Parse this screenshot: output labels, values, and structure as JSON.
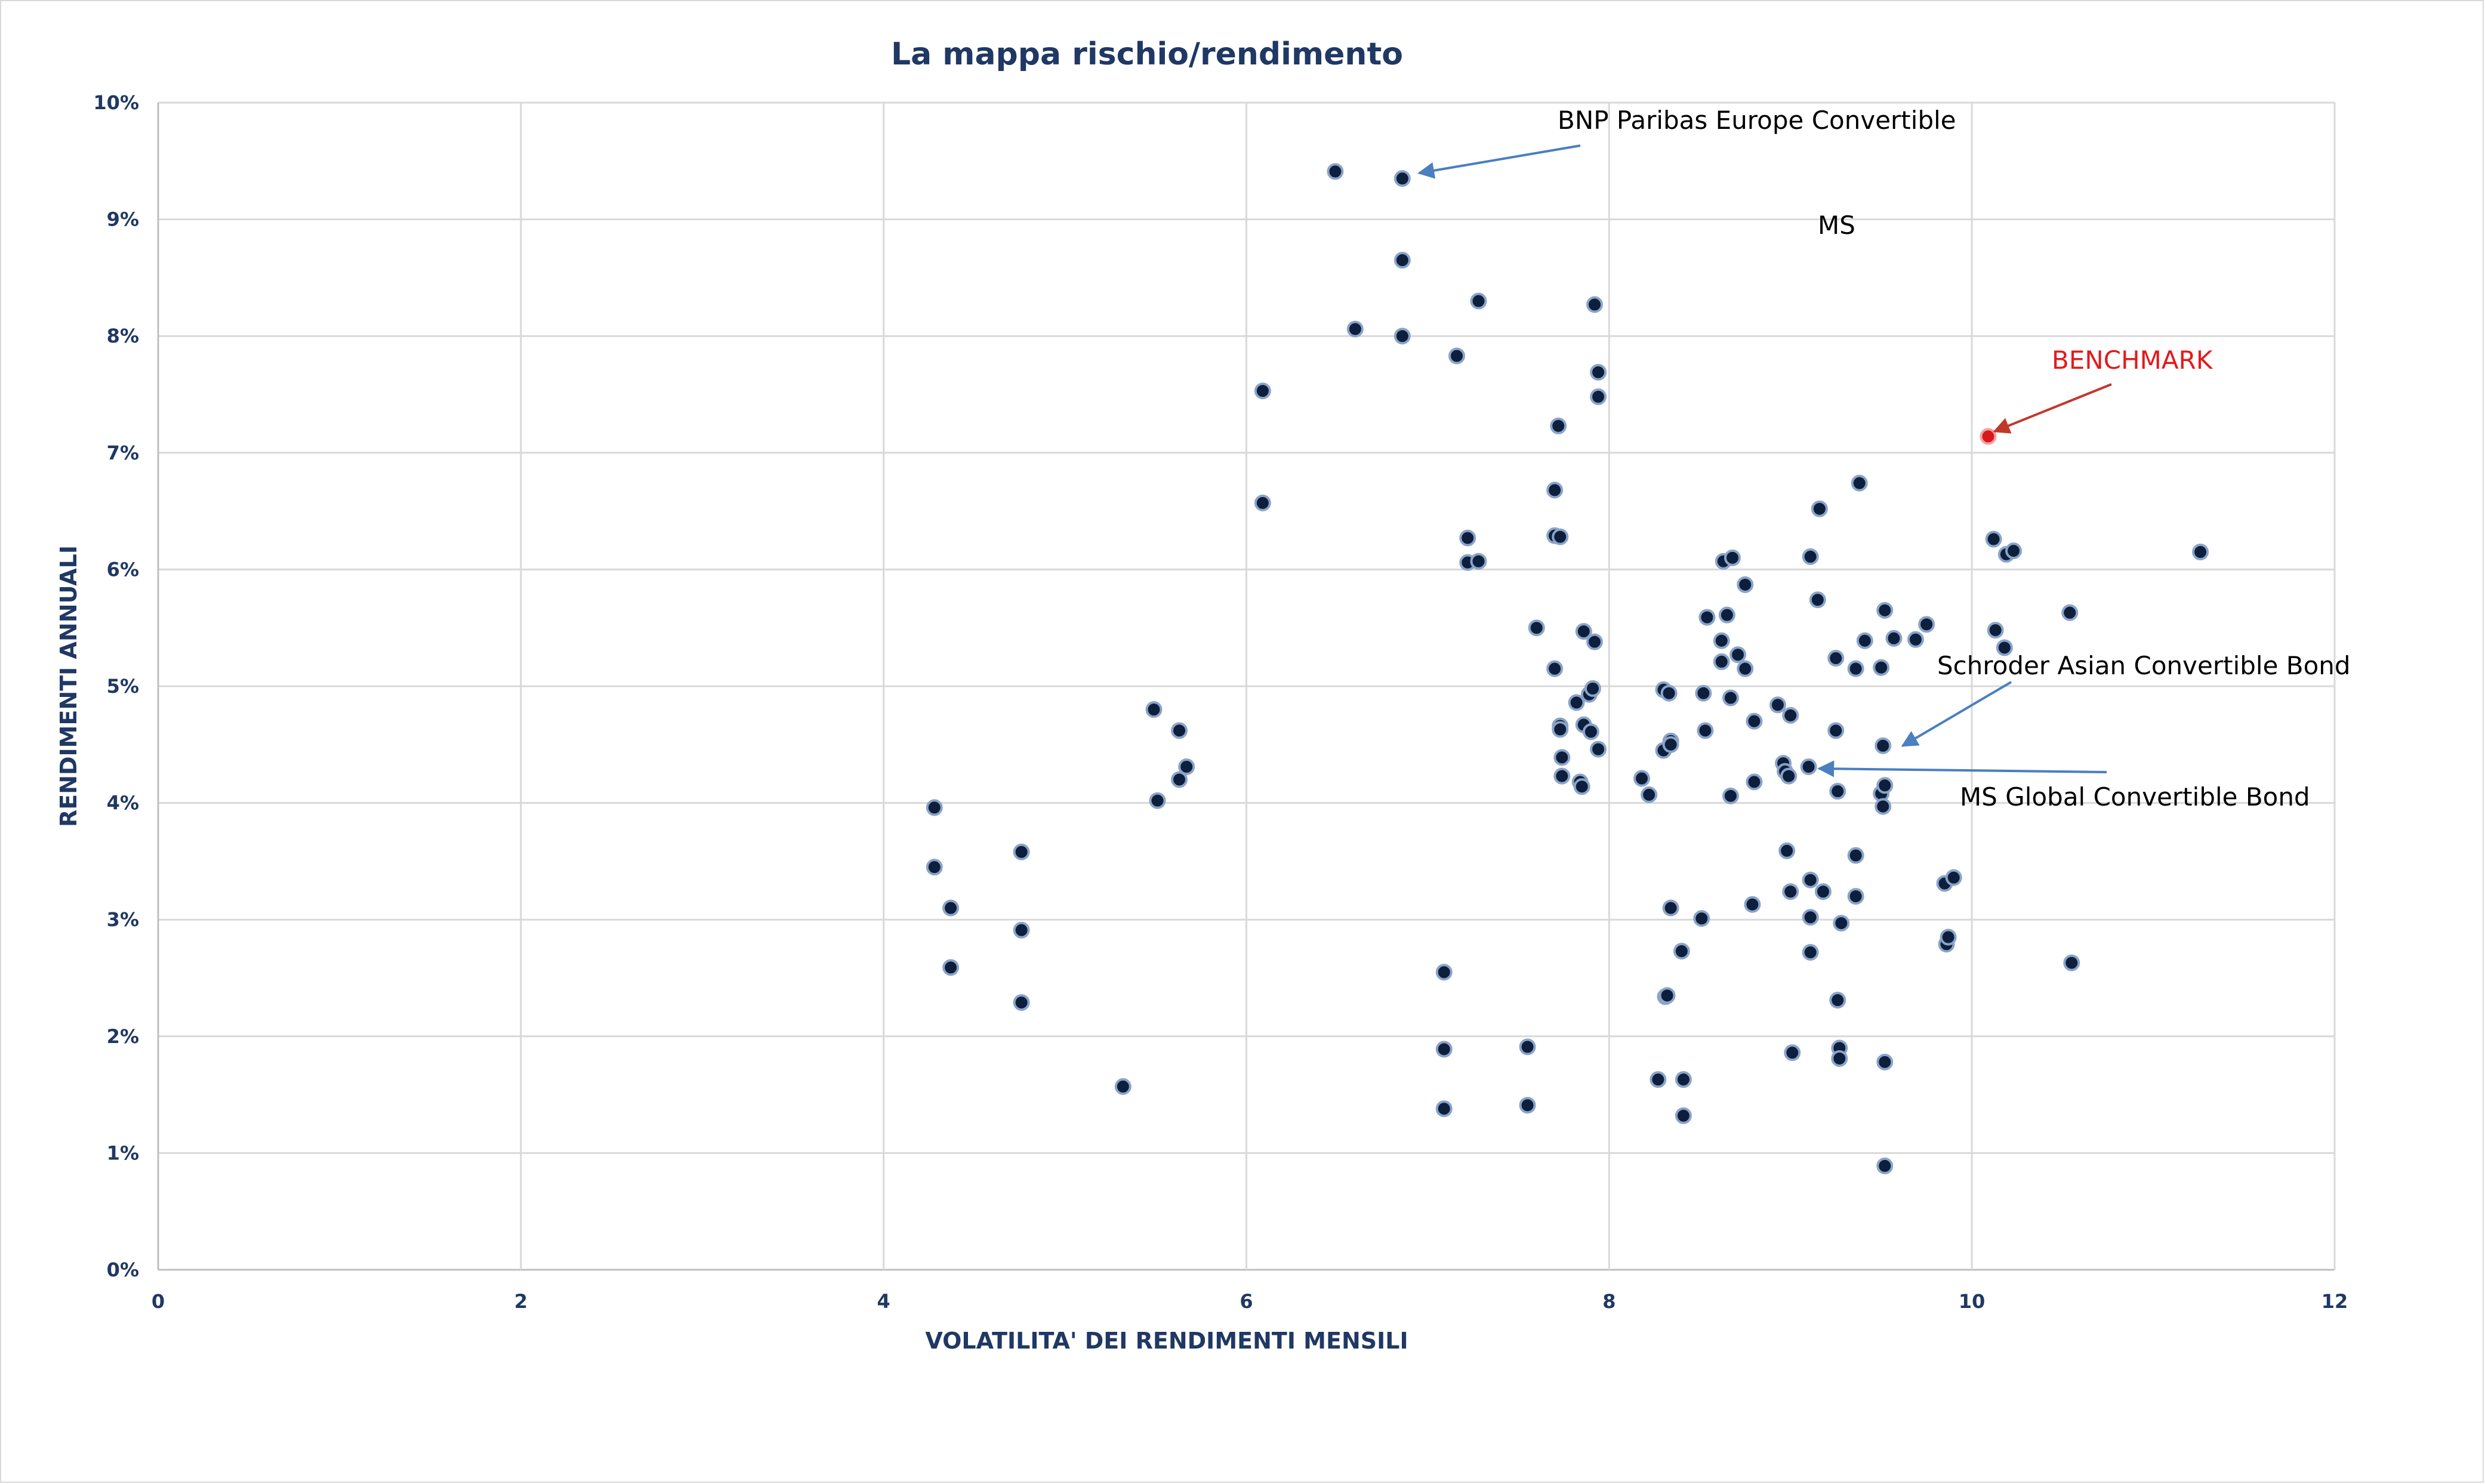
{
  "chart_data": {
    "type": "scatter",
    "title": "La mappa rischio/rendimento",
    "xlabel": "VOLATILITA' DEI RENDIMENTI MENSILI",
    "ylabel": "RENDIMENTI ANNUALI",
    "xlim": [
      0,
      12
    ],
    "ylim": [
      0,
      0.1
    ],
    "x_ticks": [
      "0",
      "2",
      "4",
      "6",
      "8",
      "10",
      "12"
    ],
    "y_ticks": [
      "0%",
      "1%",
      "2%",
      "3%",
      "4%",
      "5%",
      "6%",
      "7%",
      "8%",
      "9%",
      "10%"
    ],
    "grid": true,
    "colors": {
      "points": "#0d1f3c",
      "benchmark": "#d7191c",
      "arrow": "#4a7fc0",
      "text": "#1f3864"
    },
    "series": [
      {
        "points": [
          [
            4.28,
            0.0396
          ],
          [
            4.28,
            0.0345
          ],
          [
            4.37,
            0.031
          ],
          [
            4.37,
            0.0259
          ],
          [
            4.76,
            0.0358
          ],
          [
            4.76,
            0.0291
          ],
          [
            4.76,
            0.0229
          ],
          [
            5.32,
            0.0157
          ],
          [
            5.49,
            0.048
          ],
          [
            5.51,
            0.0402
          ],
          [
            5.63,
            0.0462
          ],
          [
            5.63,
            0.042
          ],
          [
            5.67,
            0.0431
          ],
          [
            6.09,
            0.0753
          ],
          [
            6.09,
            0.0657
          ],
          [
            6.49,
            0.0941
          ],
          [
            6.6,
            0.0806
          ],
          [
            6.86,
            0.0935
          ],
          [
            6.86,
            0.0865
          ],
          [
            6.86,
            0.08
          ],
          [
            7.09,
            0.0255
          ],
          [
            7.09,
            0.0189
          ],
          [
            7.09,
            0.0138
          ],
          [
            7.16,
            0.0783
          ],
          [
            7.22,
            0.0627
          ],
          [
            7.22,
            0.0606
          ],
          [
            7.28,
            0.083
          ],
          [
            7.28,
            0.0607
          ],
          [
            7.55,
            0.0191
          ],
          [
            7.55,
            0.0141
          ],
          [
            7.6,
            0.055
          ],
          [
            7.7,
            0.0668
          ],
          [
            7.7,
            0.0629
          ],
          [
            7.7,
            0.0515
          ],
          [
            7.72,
            0.0723
          ],
          [
            7.73,
            0.0628
          ],
          [
            7.73,
            0.0466
          ],
          [
            7.73,
            0.0463
          ],
          [
            7.74,
            0.0439
          ],
          [
            7.74,
            0.0423
          ],
          [
            7.82,
            0.0486
          ],
          [
            7.84,
            0.0418
          ],
          [
            7.85,
            0.0414
          ],
          [
            7.86,
            0.0547
          ],
          [
            7.86,
            0.0467
          ],
          [
            7.89,
            0.0493
          ],
          [
            7.9,
            0.0461
          ],
          [
            7.91,
            0.0498
          ],
          [
            7.92,
            0.0538
          ],
          [
            7.92,
            0.0827
          ],
          [
            7.94,
            0.0769
          ],
          [
            7.94,
            0.0748
          ],
          [
            7.94,
            0.0446
          ],
          [
            8.18,
            0.0421
          ],
          [
            8.22,
            0.0407
          ],
          [
            8.27,
            0.0163
          ],
          [
            8.3,
            0.0497
          ],
          [
            8.3,
            0.0445
          ],
          [
            8.31,
            0.0234
          ],
          [
            8.32,
            0.0235
          ],
          [
            8.33,
            0.0494
          ],
          [
            8.34,
            0.0453
          ],
          [
            8.34,
            0.045
          ],
          [
            8.34,
            0.031
          ],
          [
            8.4,
            0.0273
          ],
          [
            8.41,
            0.0163
          ],
          [
            8.41,
            0.0132
          ],
          [
            8.51,
            0.0301
          ],
          [
            8.52,
            0.0494
          ],
          [
            8.53,
            0.0462
          ],
          [
            8.54,
            0.0559
          ],
          [
            8.62,
            0.0539
          ],
          [
            8.62,
            0.0521
          ],
          [
            8.63,
            0.0607
          ],
          [
            8.65,
            0.0561
          ],
          [
            8.67,
            0.049
          ],
          [
            8.67,
            0.0406
          ],
          [
            8.68,
            0.061
          ],
          [
            8.71,
            0.0527
          ],
          [
            8.75,
            0.0587
          ],
          [
            8.75,
            0.0515
          ],
          [
            8.79,
            0.0313
          ],
          [
            8.8,
            0.047
          ],
          [
            8.8,
            0.0418
          ],
          [
            8.93,
            0.0484
          ],
          [
            8.96,
            0.0434
          ],
          [
            8.97,
            0.0427
          ],
          [
            8.98,
            0.0359
          ],
          [
            8.99,
            0.0423
          ],
          [
            9.0,
            0.0475
          ],
          [
            9.0,
            0.0324
          ],
          [
            9.01,
            0.0186
          ],
          [
            9.1,
            0.0431
          ],
          [
            9.11,
            0.0611
          ],
          [
            9.11,
            0.0334
          ],
          [
            9.11,
            0.0302
          ],
          [
            9.11,
            0.0272
          ],
          [
            9.15,
            0.0574
          ],
          [
            9.16,
            0.0652
          ],
          [
            9.18,
            0.0324
          ],
          [
            9.25,
            0.0524
          ],
          [
            9.25,
            0.0462
          ],
          [
            9.26,
            0.041
          ],
          [
            9.26,
            0.0231
          ],
          [
            9.27,
            0.019
          ],
          [
            9.27,
            0.0181
          ],
          [
            9.28,
            0.0297
          ],
          [
            9.36,
            0.0515
          ],
          [
            9.36,
            0.032
          ],
          [
            9.36,
            0.0355
          ],
          [
            9.38,
            0.0674
          ],
          [
            9.41,
            0.0539
          ],
          [
            9.5,
            0.0516
          ],
          [
            9.5,
            0.0408
          ],
          [
            9.51,
            0.0397
          ],
          [
            9.51,
            0.0449
          ],
          [
            9.52,
            0.0415
          ],
          [
            9.52,
            0.0565
          ],
          [
            9.52,
            0.0178
          ],
          [
            9.52,
            0.0089
          ],
          [
            9.57,
            0.0541
          ],
          [
            9.69,
            0.054
          ],
          [
            9.75,
            0.0553
          ],
          [
            9.85,
            0.0331
          ],
          [
            9.86,
            0.0279
          ],
          [
            9.87,
            0.0285
          ],
          [
            9.9,
            0.0336
          ],
          [
            10.12,
            0.0626
          ],
          [
            10.13,
            0.0548
          ],
          [
            10.18,
            0.0533
          ],
          [
            10.19,
            0.0613
          ],
          [
            10.23,
            0.0616
          ],
          [
            10.54,
            0.0563
          ],
          [
            10.55,
            0.0263
          ],
          [
            11.26,
            0.0615
          ]
        ]
      },
      {
        "points": [
          [
            10.09,
            0.0714
          ]
        ]
      }
    ],
    "annotations": [
      {
        "text": "BNP Paribas Europe Convertible",
        "target": [
          6.86,
          0.0935
        ]
      },
      {
        "text": "MS"
      },
      {
        "text": "BENCHMARK",
        "target": [
          10.09,
          0.0714
        ]
      },
      {
        "text": "Schroder Asian Convertible Bond",
        "target": [
          9.51,
          0.0449
        ]
      },
      {
        "text": "MS Global Convertible Bond",
        "target": [
          9.1,
          0.0431
        ]
      }
    ]
  }
}
